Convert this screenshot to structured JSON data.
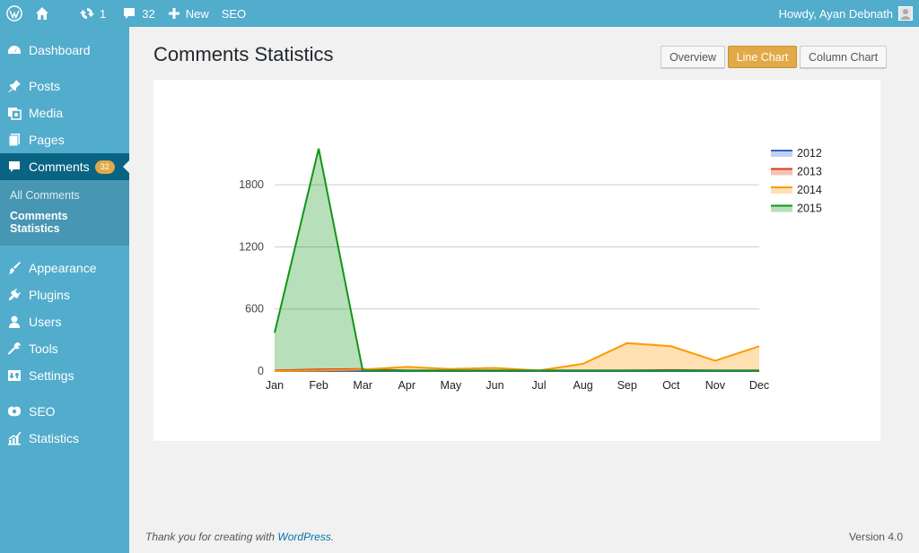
{
  "adminbar": {
    "updates_count": "1",
    "comments_count": "32",
    "new_label": "New",
    "seo_label": "SEO",
    "greeting": "Howdy, Ayan Debnath"
  },
  "sidebar": {
    "items": [
      {
        "label": "Dashboard",
        "icon": "dashboard-icon"
      },
      {
        "label": "Posts",
        "icon": "pin-icon"
      },
      {
        "label": "Media",
        "icon": "media-icon"
      },
      {
        "label": "Pages",
        "icon": "pages-icon"
      },
      {
        "label": "Comments",
        "icon": "comment-icon",
        "badge": "32"
      },
      {
        "label": "Appearance",
        "icon": "brush-icon"
      },
      {
        "label": "Plugins",
        "icon": "plug-icon"
      },
      {
        "label": "Users",
        "icon": "user-icon"
      },
      {
        "label": "Tools",
        "icon": "wrench-icon"
      },
      {
        "label": "Settings",
        "icon": "settings-icon"
      },
      {
        "label": "SEO",
        "icon": "seo-icon"
      },
      {
        "label": "Statistics",
        "icon": "chart-icon"
      }
    ],
    "submenu": [
      {
        "label": "All Comments"
      },
      {
        "label": "Comments Statistics"
      }
    ]
  },
  "main": {
    "title": "Comments Statistics",
    "buttons": {
      "overview": "Overview",
      "line_chart": "Line Chart",
      "column_chart": "Column Chart"
    }
  },
  "footer": {
    "thanks_prefix": "Thank you for creating with ",
    "thanks_link": "WordPress",
    "thanks_suffix": ".",
    "version": "Version 4.0"
  },
  "colors": {
    "accent": "#52accc",
    "active": "#096484",
    "highlight": "#e1a948"
  },
  "chart_data": {
    "type": "area",
    "categories": [
      "Jan",
      "Feb",
      "Mar",
      "Apr",
      "May",
      "Jun",
      "Jul",
      "Aug",
      "Sep",
      "Oct",
      "Nov",
      "Dec"
    ],
    "ylim": [
      0,
      2200
    ],
    "yticks": [
      0,
      600,
      1200,
      1800
    ],
    "grid": true,
    "legend_position": "right",
    "series": [
      {
        "name": "2012",
        "color": "#3366cc",
        "values": [
          0,
          0,
          0,
          0,
          0,
          0,
          0,
          0,
          0,
          0,
          0,
          0
        ]
      },
      {
        "name": "2013",
        "color": "#dc3912",
        "values": [
          5,
          15,
          20,
          5,
          5,
          5,
          5,
          5,
          5,
          10,
          5,
          5
        ]
      },
      {
        "name": "2014",
        "color": "#ff9900",
        "values": [
          0,
          5,
          15,
          40,
          20,
          30,
          5,
          70,
          270,
          240,
          100,
          240
        ]
      },
      {
        "name": "2015",
        "color": "#109618",
        "values": [
          370,
          2150,
          5,
          5,
          5,
          5,
          5,
          5,
          5,
          5,
          5,
          5
        ]
      }
    ]
  }
}
